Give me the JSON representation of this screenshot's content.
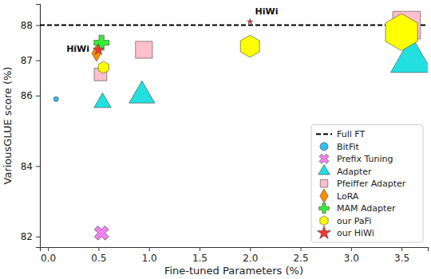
{
  "chart_data": {
    "type": "scatter",
    "x_label": "Fine-tuned Parameters (%)",
    "y_label": "VariousGLUE score (%)",
    "xlim": [
      -0.08,
      3.76
    ],
    "ylim": [
      81.7,
      88.6
    ],
    "xticks": [
      {
        "value": 0,
        "label": "0.0"
      },
      0.5,
      {
        "value": 1,
        "label": "1.0"
      },
      1.5,
      {
        "value": 2,
        "label": "2.0"
      },
      2.5,
      {
        "value": 3,
        "label": "3.0"
      },
      3.5
    ],
    "yticks": [
      82,
      84,
      86,
      87,
      88
    ],
    "legend": "lower right",
    "grid": false,
    "series": [
      {
        "name": "Full FT",
        "type": "hline",
        "color": "#000000",
        "line_style": "dashed",
        "values": [
          88
        ]
      },
      {
        "name": "BitFit",
        "color": "#33bbee",
        "marker": "circle",
        "x": [
          0.08
        ],
        "values": [
          85.9
        ],
        "sizes": [
          30
        ]
      },
      {
        "name": "Prefix Tuning",
        "color": "#ee82ee",
        "marker": "x",
        "x": [
          0.53
        ],
        "values": [
          82.1
        ],
        "sizes": [
          200
        ]
      },
      {
        "name": "Adapter",
        "color": "#22e0e0",
        "marker": "triangle",
        "x": [
          0.54,
          0.93,
          3.6
        ],
        "values": [
          85.8,
          86.0,
          87.0
        ],
        "sizes": [
          200,
          450,
          1200
        ]
      },
      {
        "name": "Pfeiffer Adapter",
        "color": "#ffc0cb",
        "marker": "square",
        "x": [
          0.52,
          0.95,
          3.55
        ],
        "values": [
          86.6,
          87.3,
          88.0
        ],
        "sizes": [
          250,
          450,
          1200
        ]
      },
      {
        "name": "LoRA",
        "color": "#ff8c00",
        "marker": "diamond",
        "x": [
          0.48
        ],
        "values": [
          87.2
        ],
        "sizes": [
          120
        ]
      },
      {
        "name": "MAM Adapter",
        "color": "#33ee33",
        "marker": "plus",
        "x": [
          0.53
        ],
        "values": [
          87.5
        ],
        "sizes": [
          200
        ]
      },
      {
        "name": "our PaFi",
        "color": "#ffff00",
        "marker": "hexagon",
        "x": [
          0.55,
          2.0,
          3.5
        ],
        "values": [
          86.8,
          87.4,
          87.8
        ],
        "sizes": [
          150,
          500,
          1400
        ]
      },
      {
        "name": "our HiWi",
        "color": "#ff3030",
        "marker": "star",
        "x": [
          0.5,
          2.0
        ],
        "values": [
          87.3,
          88.1
        ],
        "sizes": [
          60,
          15
        ]
      }
    ],
    "annotations": [
      {
        "text": "HiWi",
        "x": 0.41,
        "y": 87.25
      },
      {
        "text": "HiWi",
        "x": 2.05,
        "y": 88.3
      }
    ]
  }
}
